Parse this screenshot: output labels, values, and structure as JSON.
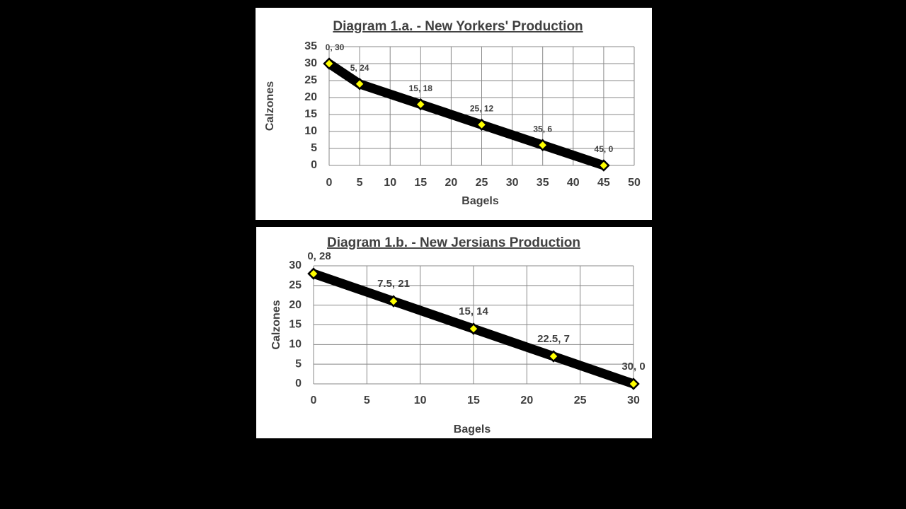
{
  "chart_data": [
    {
      "type": "line",
      "title": "Diagram 1.a. - New Yorkers' Production",
      "x_label": "Bagels",
      "y_label": "Calzones",
      "x": [
        0,
        5,
        15,
        25,
        35,
        45
      ],
      "values": [
        30,
        24,
        18,
        12,
        6,
        0
      ],
      "value_labels": [
        "0, 30",
        "5, 24",
        "15, 18",
        "25, 12",
        "35, 6",
        "45, 0"
      ],
      "color": "#000000",
      "marker_color": "#ffff00",
      "xlim": [
        0,
        50
      ],
      "ylim": [
        0,
        35
      ],
      "xticks": [
        0,
        5,
        10,
        15,
        20,
        25,
        30,
        35,
        40,
        45,
        50
      ],
      "yticks": [
        0,
        5,
        10,
        15,
        20,
        25,
        30,
        35
      ],
      "grid": true
    },
    {
      "type": "line",
      "title": "Diagram 1.b. - New Jersians Production",
      "x_label": "Bagels",
      "y_label": "Calzones",
      "x": [
        0,
        7.5,
        15,
        22.5,
        30
      ],
      "values": [
        28,
        21,
        14,
        7,
        0
      ],
      "value_labels": [
        "0, 28",
        "7.5, 21",
        "15, 14",
        "22.5, 7",
        "30, 0"
      ],
      "color": "#000000",
      "marker_color": "#ffff00",
      "xlim": [
        0,
        30
      ],
      "ylim": [
        0,
        30
      ],
      "xticks": [
        0,
        5,
        10,
        15,
        20,
        25,
        30
      ],
      "yticks": [
        0,
        5,
        10,
        15,
        20,
        25,
        30
      ],
      "grid": true
    }
  ]
}
